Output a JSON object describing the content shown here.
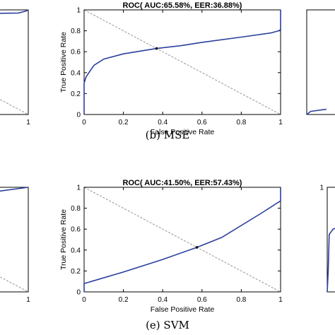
{
  "colors": {
    "curve": "#2b3f9e",
    "eer_marker": "#000000",
    "diagonal": "#8a8a8a"
  },
  "chart_data": [
    {
      "type": "line",
      "title": "",
      "xlabel": "",
      "ylabel": "",
      "xlim": [
        0,
        1
      ],
      "ylim": [
        0,
        1
      ],
      "x_ticks": [
        "1"
      ],
      "y_ticks": [],
      "diagonal": true,
      "series": [
        {
          "x": [
            0.0,
            0.95,
            0.99,
            1.0
          ],
          "y": [
            0.94,
            0.97,
            0.99,
            1.0
          ]
        }
      ],
      "caption": ""
    },
    {
      "type": "line",
      "title": "ROC( AUC:65.58%, EER:36.88%)",
      "xlabel": "False Positive Rate",
      "ylabel": "True Positive Rate",
      "xlim": [
        0,
        1
      ],
      "ylim": [
        0,
        1
      ],
      "x_ticks": [
        "0",
        "0.2",
        "0.4",
        "0.6",
        "0.8",
        "1"
      ],
      "y_ticks": [
        "0",
        "0.2",
        "0.4",
        "0.6",
        "0.8",
        "1"
      ],
      "diagonal": true,
      "series": [
        {
          "x": [
            0.0,
            0.0,
            0.01,
            0.05,
            0.1,
            0.2,
            0.3,
            0.369,
            0.5,
            0.6,
            0.8,
            0.95,
            0.99,
            1.0,
            1.0
          ],
          "y": [
            0.0,
            0.3,
            0.36,
            0.47,
            0.53,
            0.58,
            0.61,
            0.631,
            0.66,
            0.69,
            0.74,
            0.78,
            0.8,
            0.81,
            1.0
          ]
        }
      ],
      "eer_point": {
        "x": 0.369,
        "y": 0.631
      },
      "caption": "(b) MSE"
    },
    {
      "type": "line",
      "title": "",
      "xlabel": "",
      "ylabel": "",
      "xlim": [
        0,
        1
      ],
      "ylim": [
        0,
        1
      ],
      "x_ticks": [],
      "y_ticks": [],
      "diagonal": false,
      "series": [
        {
          "x": [
            0.0,
            0.02,
            0.1
          ],
          "y": [
            0.0,
            0.03,
            0.05
          ]
        }
      ],
      "caption": ""
    },
    {
      "type": "line",
      "title": "",
      "xlabel": "",
      "ylabel": "",
      "xlim": [
        0,
        1
      ],
      "ylim": [
        0,
        1
      ],
      "x_ticks": [
        "1"
      ],
      "y_ticks": [],
      "diagonal": true,
      "series": [
        {
          "x": [
            0.0,
            0.5,
            0.8,
            1.0
          ],
          "y": [
            0.85,
            0.9,
            0.95,
            1.0
          ]
        }
      ],
      "caption": ""
    },
    {
      "type": "line",
      "title": "ROC( AUC:41.50%, EER:57.43%)",
      "xlabel": "False Positive Rate",
      "ylabel": "True Positive Rate",
      "xlim": [
        0,
        1
      ],
      "ylim": [
        0,
        1
      ],
      "x_ticks": [
        "0",
        "0.2",
        "0.4",
        "0.6",
        "0.8",
        "1"
      ],
      "y_ticks": [
        "0",
        "0.2",
        "0.4",
        "0.6",
        "0.8",
        "1"
      ],
      "diagonal": true,
      "series": [
        {
          "x": [
            0.0,
            0.0,
            0.2,
            0.4,
            0.574,
            0.7,
            0.9,
            1.0,
            1.0
          ],
          "y": [
            0.0,
            0.08,
            0.19,
            0.31,
            0.426,
            0.52,
            0.75,
            0.87,
            1.0
          ]
        }
      ],
      "eer_point": {
        "x": 0.574,
        "y": 0.426
      },
      "caption": "(e) SVM"
    },
    {
      "type": "line",
      "title": "",
      "xlabel": "",
      "ylabel": "",
      "xlim": [
        0,
        1
      ],
      "ylim": [
        0,
        1
      ],
      "x_ticks": [],
      "y_ticks": [
        "1"
      ],
      "diagonal": false,
      "series": [
        {
          "x": [
            0.0,
            0.005,
            0.01,
            0.03,
            0.06
          ],
          "y": [
            0.0,
            0.2,
            0.55,
            0.6,
            0.62
          ]
        }
      ],
      "caption": ""
    }
  ]
}
